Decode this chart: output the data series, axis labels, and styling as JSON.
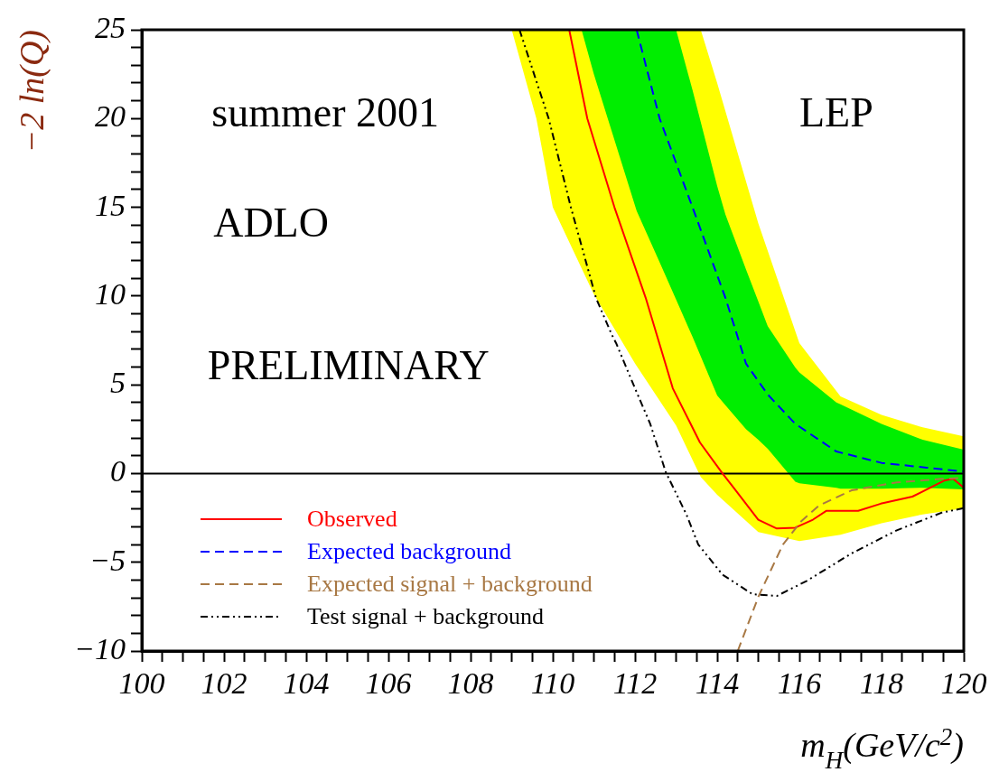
{
  "chart_data": {
    "type": "line",
    "xlabel": "m$_{H}$(GeV/c$^{2}$)",
    "ylabel": "−2 ln(Q)",
    "annotations": [
      "summer 2001",
      "ADLO",
      "PRELIMINARY",
      "LEP"
    ],
    "xlim": [
      100,
      120
    ],
    "ylim": [
      -10,
      25
    ],
    "xticks": [
      100,
      {
        "value": 100.5,
        "label": null
      },
      {
        "value": 101,
        "label": null
      },
      {
        "value": 101.5,
        "label": null
      },
      102,
      {
        "value": 102.5,
        "label": null
      },
      {
        "value": 103,
        "label": null
      },
      {
        "value": 103.5,
        "label": null
      },
      104,
      {
        "value": 104.5,
        "label": null
      },
      {
        "value": 105,
        "label": null
      },
      {
        "value": 105.5,
        "label": null
      },
      106,
      {
        "value": 106.5,
        "label": null
      },
      {
        "value": 107,
        "label": null
      },
      {
        "value": 107.5,
        "label": null
      },
      108,
      {
        "value": 108.5,
        "label": null
      },
      {
        "value": 109,
        "label": null
      },
      {
        "value": 109.5,
        "label": null
      },
      110,
      {
        "value": 110.5,
        "label": null
      },
      {
        "value": 111,
        "label": null
      },
      {
        "value": 111.5,
        "label": null
      },
      112,
      {
        "value": 112.5,
        "label": null
      },
      {
        "value": 113,
        "label": null
      },
      {
        "value": 113.5,
        "label": null
      },
      114,
      {
        "value": 114.5,
        "label": null
      },
      {
        "value": 115,
        "label": null
      },
      {
        "value": 115.5,
        "label": null
      },
      116,
      {
        "value": 116.5,
        "label": null
      },
      {
        "value": 117,
        "label": null
      },
      {
        "value": 117.5,
        "label": null
      },
      118,
      {
        "value": 118.5,
        "label": null
      },
      {
        "value": 119,
        "label": null
      },
      {
        "value": 119.5,
        "label": null
      },
      120
    ],
    "yticks": [
      {
        "value": -10,
        "label": "−10"
      },
      {
        "value": -9,
        "label": null
      },
      {
        "value": -8,
        "label": null
      },
      {
        "value": -7,
        "label": null
      },
      {
        "value": -6,
        "label": null
      },
      {
        "value": -5,
        "label": "−5"
      },
      {
        "value": -4,
        "label": null
      },
      {
        "value": -3,
        "label": null
      },
      {
        "value": -2,
        "label": null
      },
      {
        "value": -1,
        "label": null
      },
      0,
      {
        "value": 1,
        "label": null
      },
      {
        "value": 2,
        "label": null
      },
      {
        "value": 3,
        "label": null
      },
      {
        "value": 4,
        "label": null
      },
      5,
      {
        "value": 6,
        "label": null
      },
      {
        "value": 7,
        "label": null
      },
      {
        "value": 8,
        "label": null
      },
      {
        "value": 9,
        "label": null
      },
      10,
      {
        "value": 11,
        "label": null
      },
      {
        "value": 12,
        "label": null
      },
      {
        "value": 13,
        "label": null
      },
      {
        "value": 14,
        "label": null
      },
      15,
      {
        "value": 16,
        "label": null
      },
      {
        "value": 17,
        "label": null
      },
      {
        "value": 18,
        "label": null
      },
      {
        "value": 19,
        "label": null
      },
      20,
      {
        "value": 21,
        "label": null
      },
      {
        "value": 22,
        "label": null
      },
      {
        "value": 23,
        "label": null
      },
      {
        "value": 24,
        "label": null
      },
      25
    ],
    "ref_lines": [
      {
        "axis": "y",
        "value": 0,
        "color": "#000000"
      }
    ],
    "legend": "bottom left",
    "series": [
      {
        "type": "area",
        "color": "#ffff00",
        "x": [
          109,
          109.6,
          110,
          111,
          112,
          113,
          113.6,
          114,
          115,
          116,
          117,
          118,
          119,
          120
        ],
        "values": [
          null,
          null,
          null,
          null,
          null,
          null,
          null,
          null,
          null,
          null,
          null,
          null,
          null,
          null
        ],
        "lower": [
          25,
          20,
          15,
          10.1,
          6.2,
          2.7,
          -0.2,
          -1.2,
          -3.3,
          -3.8,
          -3.45,
          -2.8,
          -2.3,
          -1.96
        ],
        "upper": [
          25,
          25,
          25,
          25,
          25,
          25,
          25,
          22,
          14.1,
          7.35,
          4.35,
          3.3,
          2.6,
          2.1
        ]
      },
      {
        "name": "Observed",
        "color": "#ff0000",
        "line_style": "solid",
        "x": [
          110.4,
          110.84,
          111.5,
          112.26,
          112.92,
          113.58,
          114.13,
          114.4,
          115.0,
          115.45,
          115.9,
          116.33,
          116.66,
          117.43,
          117.98,
          118.75,
          119.52,
          119.74,
          120
        ],
        "values": [
          25,
          20,
          15,
          9.9,
          4.8,
          1.75,
          0,
          -0.8,
          -2.6,
          -3.1,
          -3.05,
          -2.6,
          -2.1,
          -2.1,
          -1.7,
          -1.3,
          -0.4,
          -0.3,
          -0.8
        ]
      },
      {
        "type": "area",
        "color": "#00ee00",
        "x": [
          110.7,
          111,
          112.04,
          112.6,
          113,
          113.4,
          114,
          114.2,
          114.7,
          115,
          115.23,
          115.9,
          116,
          116.9,
          117,
          118,
          119,
          120
        ],
        "values": [
          null,
          null,
          null,
          null,
          null,
          null,
          null,
          null,
          null,
          null,
          null,
          null,
          null,
          null,
          null,
          null,
          null,
          null
        ],
        "lower": [
          25,
          22.5,
          14.8,
          11.9,
          9.8,
          7.7,
          4.4,
          3.85,
          2.5,
          1.9,
          1.4,
          -0.46,
          -0.55,
          -0.81,
          -0.85,
          -0.85,
          -0.8,
          -0.9
        ],
        "upper": [
          25,
          25,
          25,
          25,
          25,
          21.6,
          16.2,
          14.6,
          11.5,
          9.7,
          8.3,
          5.97,
          5.7,
          4.0,
          3.9,
          2.8,
          1.9,
          1.35
        ]
      },
      {
        "name": "Expected background",
        "color": "#0000ff",
        "line_style": "dashed",
        "x": [
          112.04,
          112.6,
          113.4,
          114.2,
          114.7,
          115.23,
          115.9,
          116.9,
          118.0,
          119.1,
          120
        ],
        "values": [
          25,
          20,
          15,
          9.9,
          6.2,
          4.45,
          2.8,
          1.24,
          0.6,
          0.33,
          0.1
        ]
      },
      {
        "name": "Expected signal + background",
        "color": "#a87844",
        "line_style": "dashed",
        "x": [
          114.5,
          115.01,
          115.6,
          116.04,
          116.48,
          117.27,
          118.37,
          119.47,
          120
        ],
        "values": [
          -10,
          -6.9,
          -4.0,
          -2.7,
          -1.8,
          -0.95,
          -0.5,
          -0.3,
          -0.25
        ]
      },
      {
        "name": "Test signal + background",
        "color": "#000000",
        "line_style": "dotted",
        "x": [
          109.19,
          109.9,
          110.44,
          111.05,
          111.43,
          111.54,
          112.0,
          112.37,
          112.75,
          113.25,
          113.54,
          114.13,
          114.86,
          115.45,
          116.18,
          117.27,
          118.37,
          119.47,
          120
        ],
        "values": [
          25,
          20,
          15,
          9.9,
          7.85,
          7.35,
          4.8,
          2.8,
          0.07,
          -2.3,
          -4.0,
          -5.7,
          -6.8,
          -6.9,
          -6.05,
          -4.5,
          -3.2,
          -2.2,
          -1.95
        ]
      }
    ]
  }
}
